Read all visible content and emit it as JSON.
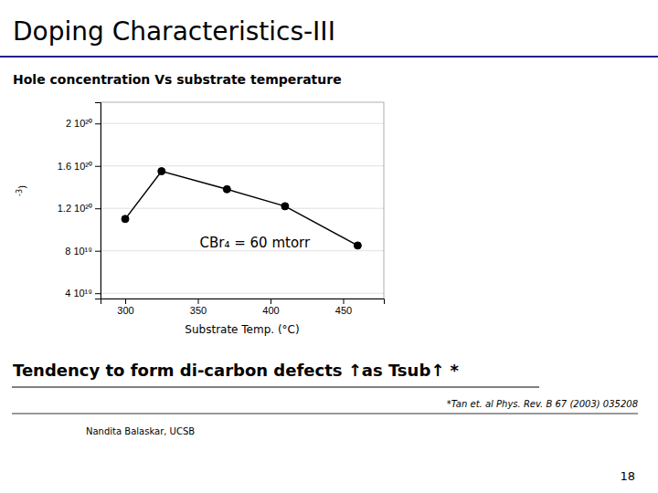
{
  "chart_data": {
    "type": "line",
    "title": "Doping Characteristics-III",
    "subtitle": "Hole concentration Vs substrate temperature",
    "x": [
      300,
      325,
      370,
      410,
      460
    ],
    "values": [
      1.1e+20,
      1.55e+20,
      1.38e+20,
      1.22e+20,
      8.5e+19
    ],
    "color": "#000000",
    "marker": "circle",
    "xlabel": "Substrate Temp. (°C)",
    "ylabel": "-3)",
    "xlim": [
      283,
      478
    ],
    "ylim": [
      3.5e+19,
      2.2e+20
    ],
    "xticks": [
      300,
      350,
      400,
      450
    ],
    "yticks": [
      {
        "value": 4e+19,
        "label": "4 10¹⁹"
      },
      {
        "value": 8e+19,
        "label": "8 10¹⁹"
      },
      {
        "value": 1.2e+20,
        "label": "1.2 10²⁰"
      },
      {
        "value": 1.6e+20,
        "label": "1.6 10²⁰"
      },
      {
        "value": 2e+20,
        "label": "2 10²⁰"
      }
    ],
    "grid": true,
    "annotations": [
      "CBr₄ = 60 mtorr",
      "Tendency to form di-carbon defects ↑as Tsub↑ *",
      "*Tan et. al  Phys. Rev. B 67 (2003) 035208",
      "Nandita Balaskar, UCSB",
      "18"
    ]
  }
}
